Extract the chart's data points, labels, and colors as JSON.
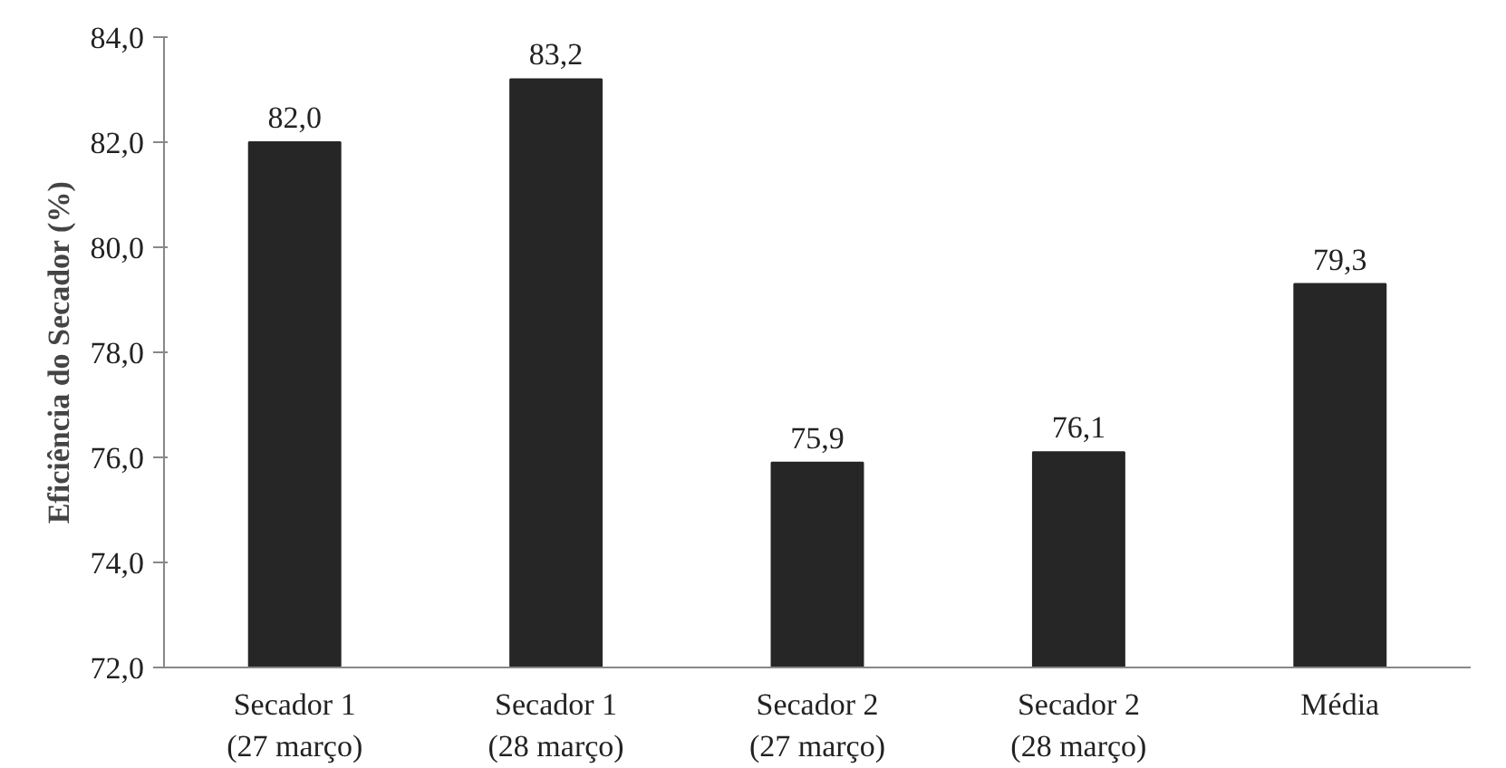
{
  "chart_data": {
    "type": "bar",
    "ylabel": "Eficiência do Secador (%)",
    "categories": [
      "Secador 1\n(27 março)",
      "Secador 1\n(28 março)",
      "Secador 2\n(27 março)",
      "Secador 2\n(28 março)",
      "Média"
    ],
    "values": [
      82.0,
      83.2,
      75.9,
      76.1,
      79.3
    ],
    "value_labels": [
      "82,0",
      "83,2",
      "75,9",
      "76,1",
      "79,3"
    ],
    "color": "#262626",
    "ylim": [
      72,
      84
    ],
    "yticks": [
      {
        "value": 72,
        "label": "72,0"
      },
      {
        "value": 74,
        "label": "74,0"
      },
      {
        "value": 76,
        "label": "76,0"
      },
      {
        "value": 78,
        "label": "78,0"
      },
      {
        "value": 80,
        "label": "80,0"
      },
      {
        "value": 82,
        "label": "82,0"
      },
      {
        "value": 84,
        "label": "84,0"
      }
    ],
    "grid": false
  }
}
